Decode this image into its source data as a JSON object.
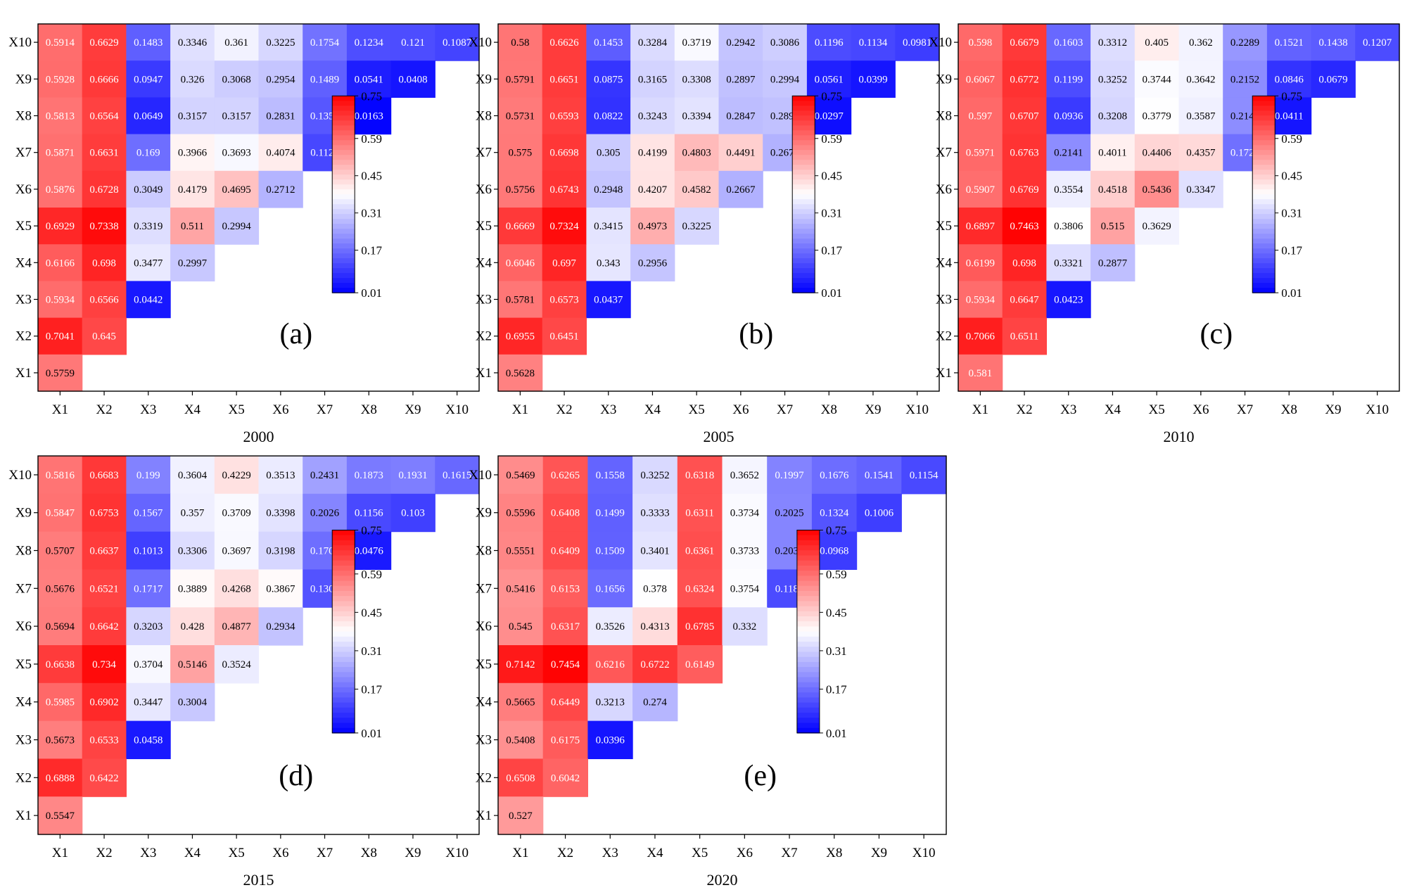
{
  "chart_data": [
    {
      "type": "heatmap",
      "panel_label": "(a)",
      "xlabel": "2000",
      "categories": [
        "X1",
        "X2",
        "X3",
        "X4",
        "X5",
        "X6",
        "X7",
        "X8",
        "X9",
        "X10"
      ],
      "rows": [
        {
          "y": "X10",
          "values": [
            0.5914,
            0.6629,
            0.1483,
            0.3346,
            0.361,
            0.3225,
            0.1754,
            0.1234,
            0.121,
            0.1087
          ]
        },
        {
          "y": "X9",
          "values": [
            0.5928,
            0.6666,
            0.0947,
            0.326,
            0.3068,
            0.2954,
            0.1489,
            0.0541,
            0.0408
          ]
        },
        {
          "y": "X8",
          "values": [
            0.5813,
            0.6564,
            0.0649,
            0.3157,
            0.3157,
            0.2831,
            0.1358,
            0.0163
          ]
        },
        {
          "y": "X7",
          "values": [
            0.5871,
            0.6631,
            0.169,
            0.3966,
            0.3693,
            0.4074,
            0.1123
          ]
        },
        {
          "y": "X6",
          "values": [
            0.5876,
            0.6728,
            0.3049,
            0.4179,
            0.4695,
            0.2712
          ]
        },
        {
          "y": "X5",
          "values": [
            0.6929,
            0.7338,
            0.3319,
            0.511,
            0.2994
          ]
        },
        {
          "y": "X4",
          "values": [
            0.6166,
            0.698,
            0.3477,
            0.2997
          ]
        },
        {
          "y": "X3",
          "values": [
            0.5934,
            0.6566,
            0.0442
          ]
        },
        {
          "y": "X2",
          "values": [
            0.7041,
            0.645
          ]
        },
        {
          "y": "X1",
          "values": [
            0.5759
          ]
        }
      ]
    },
    {
      "type": "heatmap",
      "panel_label": "(b)",
      "xlabel": "2005",
      "categories": [
        "X1",
        "X2",
        "X3",
        "X4",
        "X5",
        "X6",
        "X7",
        "X8",
        "X9",
        "X10"
      ],
      "rows": [
        {
          "y": "X10",
          "values": [
            0.58,
            0.6626,
            0.1453,
            0.3284,
            0.3719,
            0.2942,
            0.3086,
            0.1196,
            0.1134,
            0.0981
          ]
        },
        {
          "y": "X9",
          "values": [
            0.5791,
            0.6651,
            0.0875,
            0.3165,
            0.3308,
            0.2897,
            0.2994,
            0.0561,
            0.0399
          ]
        },
        {
          "y": "X8",
          "values": [
            0.5731,
            0.6593,
            0.0822,
            0.3243,
            0.3394,
            0.2847,
            0.2896,
            0.0297
          ]
        },
        {
          "y": "X7",
          "values": [
            0.575,
            0.6698,
            0.305,
            0.4199,
            0.4803,
            0.4491,
            0.2676
          ]
        },
        {
          "y": "X6",
          "values": [
            0.5756,
            0.6743,
            0.2948,
            0.4207,
            0.4582,
            0.2667
          ]
        },
        {
          "y": "X5",
          "values": [
            0.6669,
            0.7324,
            0.3415,
            0.4973,
            0.3225
          ]
        },
        {
          "y": "X4",
          "values": [
            0.6046,
            0.697,
            0.343,
            0.2956
          ]
        },
        {
          "y": "X3",
          "values": [
            0.5781,
            0.6573,
            0.0437
          ]
        },
        {
          "y": "X2",
          "values": [
            0.6955,
            0.6451
          ]
        },
        {
          "y": "X1",
          "values": [
            0.5628
          ]
        }
      ]
    },
    {
      "type": "heatmap",
      "panel_label": "(c)",
      "xlabel": "2010",
      "categories": [
        "X1",
        "X2",
        "X3",
        "X4",
        "X5",
        "X6",
        "X7",
        "X8",
        "X9",
        "X10"
      ],
      "rows": [
        {
          "y": "X10",
          "values": [
            0.598,
            0.6679,
            0.1603,
            0.3312,
            0.405,
            0.362,
            0.2289,
            0.1521,
            0.1438,
            0.1207
          ]
        },
        {
          "y": "X9",
          "values": [
            0.6067,
            0.6772,
            0.1199,
            0.3252,
            0.3744,
            0.3642,
            0.2152,
            0.0846,
            0.0679
          ]
        },
        {
          "y": "X8",
          "values": [
            0.597,
            0.6707,
            0.0936,
            0.3208,
            0.3779,
            0.3587,
            0.2148,
            0.0411
          ]
        },
        {
          "y": "X7",
          "values": [
            0.5971,
            0.6763,
            0.2141,
            0.4011,
            0.4406,
            0.4357,
            0.1729
          ]
        },
        {
          "y": "X6",
          "values": [
            0.5907,
            0.6769,
            0.3554,
            0.4518,
            0.5436,
            0.3347
          ]
        },
        {
          "y": "X5",
          "values": [
            0.6897,
            0.7463,
            0.3806,
            0.515,
            0.3629
          ]
        },
        {
          "y": "X4",
          "values": [
            0.6199,
            0.698,
            0.3321,
            0.2877
          ]
        },
        {
          "y": "X3",
          "values": [
            0.5934,
            0.6647,
            0.0423
          ]
        },
        {
          "y": "X2",
          "values": [
            0.7066,
            0.6511
          ]
        },
        {
          "y": "X1",
          "values": [
            0.581
          ]
        }
      ]
    },
    {
      "type": "heatmap",
      "panel_label": "(d)",
      "xlabel": "2015",
      "categories": [
        "X1",
        "X2",
        "X3",
        "X4",
        "X5",
        "X6",
        "X7",
        "X8",
        "X9",
        "X10"
      ],
      "rows": [
        {
          "y": "X10",
          "values": [
            0.5816,
            0.6683,
            0.199,
            0.3604,
            0.4229,
            0.3513,
            0.2431,
            0.1873,
            0.1931,
            0.1615
          ]
        },
        {
          "y": "X9",
          "values": [
            0.5847,
            0.6753,
            0.1567,
            0.357,
            0.3709,
            0.3398,
            0.2026,
            0.1156,
            0.103
          ]
        },
        {
          "y": "X8",
          "values": [
            0.5707,
            0.6637,
            0.1013,
            0.3306,
            0.3697,
            0.3198,
            0.1702,
            0.0476
          ]
        },
        {
          "y": "X7",
          "values": [
            0.5676,
            0.6521,
            0.1717,
            0.3889,
            0.4268,
            0.3867,
            0.1309
          ]
        },
        {
          "y": "X6",
          "values": [
            0.5694,
            0.6642,
            0.3203,
            0.428,
            0.4877,
            0.2934
          ]
        },
        {
          "y": "X5",
          "values": [
            0.6638,
            0.734,
            0.3704,
            0.5146,
            0.3524
          ]
        },
        {
          "y": "X4",
          "values": [
            0.5985,
            0.6902,
            0.3447,
            0.3004
          ]
        },
        {
          "y": "X3",
          "values": [
            0.5673,
            0.6533,
            0.0458
          ]
        },
        {
          "y": "X2",
          "values": [
            0.6888,
            0.6422
          ]
        },
        {
          "y": "X1",
          "values": [
            0.5547
          ]
        }
      ]
    },
    {
      "type": "heatmap",
      "panel_label": "(e)",
      "xlabel": "2020",
      "categories": [
        "X1",
        "X2",
        "X3",
        "X4",
        "X5",
        "X6",
        "X7",
        "X8",
        "X9",
        "X10"
      ],
      "rows": [
        {
          "y": "X10",
          "values": [
            0.5469,
            0.6265,
            0.1558,
            0.3252,
            0.6318,
            0.3652,
            0.1997,
            0.1676,
            0.1541,
            0.1154
          ]
        },
        {
          "y": "X9",
          "values": [
            0.5596,
            0.6408,
            0.1499,
            0.3333,
            0.6311,
            0.3734,
            0.2025,
            0.1324,
            0.1006
          ]
        },
        {
          "y": "X8",
          "values": [
            0.5551,
            0.6409,
            0.1509,
            0.3401,
            0.6361,
            0.3733,
            0.2034,
            0.0968
          ]
        },
        {
          "y": "X7",
          "values": [
            0.5416,
            0.6153,
            0.1656,
            0.378,
            0.6324,
            0.3754,
            0.1182
          ]
        },
        {
          "y": "X6",
          "values": [
            0.545,
            0.6317,
            0.3526,
            0.4313,
            0.6785,
            0.332
          ]
        },
        {
          "y": "X5",
          "values": [
            0.7142,
            0.7454,
            0.6216,
            0.6722,
            0.6149
          ]
        },
        {
          "y": "X4",
          "values": [
            0.5665,
            0.6449,
            0.3213,
            0.274
          ]
        },
        {
          "y": "X3",
          "values": [
            0.5408,
            0.6175,
            0.0396
          ]
        },
        {
          "y": "X2",
          "values": [
            0.6508,
            0.6042
          ]
        },
        {
          "y": "X1",
          "values": [
            0.527
          ]
        }
      ]
    }
  ],
  "colorbar": {
    "min": 0.01,
    "max": 0.75,
    "ticks": [
      "0.75",
      "0.59",
      "0.45",
      "0.31",
      "0.17",
      "0.01"
    ],
    "colormap": "bwr",
    "low_color": "#0000ff",
    "mid_color": "#ffffff",
    "high_color": "#ff0000"
  }
}
